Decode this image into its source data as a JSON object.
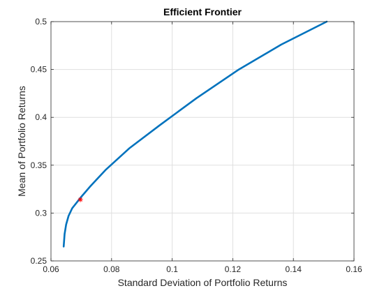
{
  "chart_data": {
    "type": "line",
    "title": "Efficient  Frontier",
    "xlabel": "Standard Deviation of Portfolio Returns",
    "ylabel": "Mean of Portfolio Returns",
    "xlim": [
      0.06,
      0.16
    ],
    "ylim": [
      0.25,
      0.5
    ],
    "xticks": [
      0.06,
      0.08,
      0.1,
      0.12,
      0.14,
      0.16
    ],
    "xtick_labels": [
      "0.06",
      "0.08",
      "0.1",
      "0.12",
      "0.14",
      "0.16"
    ],
    "yticks": [
      0.25,
      0.3,
      0.35,
      0.4,
      0.45,
      0.5
    ],
    "ytick_labels": [
      "0.25",
      "0.3",
      "0.35",
      "0.4",
      "0.45",
      "0.5"
    ],
    "grid": true,
    "series": [
      {
        "color": "#0072bd",
        "x": [
          0.0642,
          0.0643,
          0.0645,
          0.065,
          0.0658,
          0.067,
          0.0685,
          0.07,
          0.073,
          0.078,
          0.086,
          0.096,
          0.108,
          0.122,
          0.136,
          0.151
        ],
        "y": [
          0.265,
          0.27,
          0.278,
          0.288,
          0.297,
          0.305,
          0.311,
          0.317,
          0.328,
          0.345,
          0.368,
          0.392,
          0.42,
          0.45,
          0.476,
          0.5
        ]
      }
    ],
    "markers": [
      {
        "x": 0.0697,
        "y": 0.314,
        "symbol": "*",
        "color": "#ff0000"
      }
    ]
  }
}
